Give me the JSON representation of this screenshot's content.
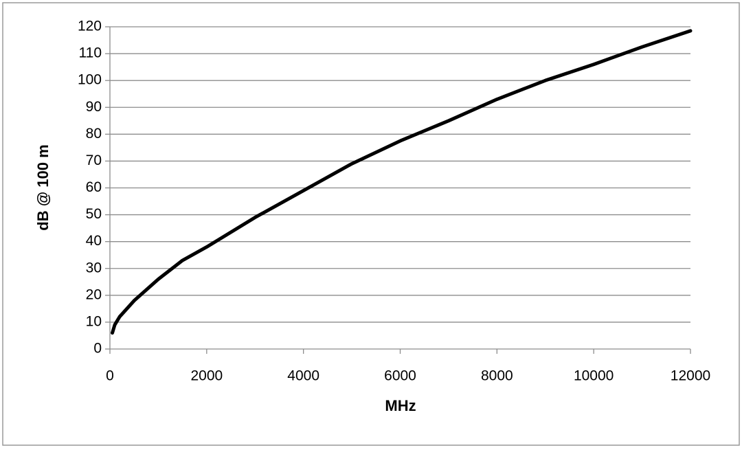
{
  "chart_data": {
    "type": "line",
    "xlabel": "MHz",
    "ylabel": "dB @ 100 m",
    "x": [
      50,
      100,
      200,
      500,
      1000,
      1500,
      2000,
      3000,
      4000,
      5000,
      6000,
      7000,
      8000,
      9000,
      10000,
      11000,
      12000
    ],
    "series": [
      {
        "name": null,
        "color": "#000000",
        "values": [
          6,
          9,
          12,
          18,
          26,
          33,
          38,
          49,
          59,
          69,
          77.5,
          85,
          93,
          100,
          106,
          112.5,
          118.5
        ]
      }
    ],
    "xlim": [
      0,
      12000
    ],
    "xticks": [
      0,
      2000,
      4000,
      6000,
      8000,
      10000,
      12000
    ],
    "ylim": [
      0,
      120
    ],
    "yticks": [
      0,
      10,
      20,
      30,
      40,
      50,
      60,
      70,
      80,
      90,
      100,
      110,
      120
    ],
    "grid": true
  }
}
